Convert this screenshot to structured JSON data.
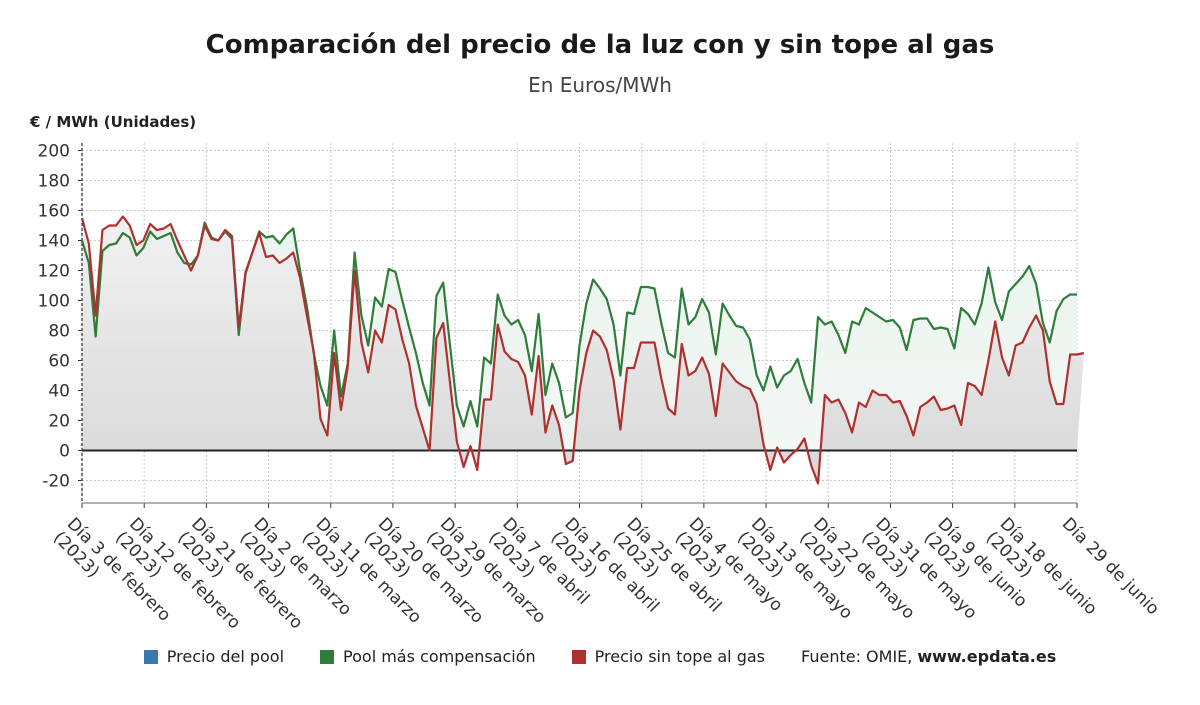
{
  "header": {
    "title": "Comparación del precio de la luz con y sin tope al gas",
    "subtitle": "En Euros/MWh",
    "unit": "€ / MWh (Unidades)"
  },
  "legend": {
    "items": [
      {
        "label": "Precio del pool",
        "color": "#3b78b0"
      },
      {
        "label": "Pool más compensación",
        "color": "#2e7d3a"
      },
      {
        "label": "Precio sin tope al gas",
        "color": "#b03030"
      }
    ],
    "source_prefix": "Fuente: OMIE,",
    "source_site": "www.epdata.es"
  },
  "chart_data": {
    "type": "line",
    "ylim": [
      -35,
      205
    ],
    "yticks": [
      -20,
      0,
      20,
      40,
      60,
      80,
      100,
      120,
      140,
      160,
      180,
      200
    ],
    "grid": true,
    "legend_position": "bottom",
    "x_ticks": [
      {
        "line1": "Día 3 de febrero",
        "line2": "(2023)"
      },
      {
        "line1": "Día 12 de febrero",
        "line2": "(2023)"
      },
      {
        "line1": "Día 21 de febrero",
        "line2": "(2023)"
      },
      {
        "line1": "Día 2 de marzo",
        "line2": "(2023)"
      },
      {
        "line1": "Día 11 de marzo",
        "line2": "(2023)"
      },
      {
        "line1": "Día 20 de marzo",
        "line2": "(2023)"
      },
      {
        "line1": "Día 29 de marzo",
        "line2": "(2023)"
      },
      {
        "line1": "Día 7 de abril",
        "line2": "(2023)"
      },
      {
        "line1": "Día 16 de abril",
        "line2": "(2023)"
      },
      {
        "line1": "Día 25 de abril",
        "line2": "(2023)"
      },
      {
        "line1": "Día 4 de mayo",
        "line2": "(2023)"
      },
      {
        "line1": "Día 13 de mayo",
        "line2": "(2023)"
      },
      {
        "line1": "Día 22 de mayo",
        "line2": "(2023)"
      },
      {
        "line1": "Día 31 de mayo",
        "line2": "(2023)"
      },
      {
        "line1": "Día 9 de junio",
        "line2": "(2023)"
      },
      {
        "line1": "Día 18 de junio",
        "line2": "(2023)"
      },
      {
        "line1": "Día 29 de junio",
        "line2": ""
      }
    ],
    "series": [
      {
        "name": "Pool más compensación",
        "color": "#2e7d3a",
        "values": [
          140,
          125,
          76,
          133,
          137,
          138,
          145,
          142,
          130,
          135,
          146,
          141,
          143,
          145,
          132,
          125,
          124,
          130,
          152,
          142,
          140,
          146,
          141,
          77,
          118,
          132,
          146,
          142,
          143,
          138,
          144,
          148,
          120,
          96,
          65,
          43,
          30,
          80,
          36,
          58,
          132,
          90,
          70,
          102,
          96,
          121,
          119,
          100,
          82,
          65,
          45,
          30,
          103,
          112,
          70,
          30,
          16,
          33,
          16,
          62,
          58,
          104,
          90,
          84,
          87,
          77,
          53,
          91,
          37,
          58,
          45,
          22,
          25,
          70,
          98,
          114,
          108,
          101,
          84,
          50,
          92,
          91,
          109,
          109,
          108,
          85,
          65,
          62,
          108,
          84,
          89,
          101,
          92,
          64,
          98,
          90,
          83,
          82,
          74,
          50,
          40,
          56,
          42,
          50,
          53,
          61,
          45,
          32,
          89,
          84,
          86,
          77,
          65,
          86,
          84,
          95,
          92,
          89,
          86,
          87,
          82,
          67,
          87,
          88,
          88,
          81,
          82,
          81,
          68,
          95,
          91,
          84,
          98,
          122,
          99,
          87,
          106,
          111,
          116,
          123,
          111,
          85,
          72,
          93,
          101,
          104,
          104
        ]
      },
      {
        "name": "Precio sin tope al gas",
        "color": "#b03030",
        "values": [
          155,
          138,
          90,
          147,
          150,
          150,
          156,
          150,
          137,
          140,
          151,
          147,
          148,
          151,
          140,
          130,
          120,
          130,
          150,
          141,
          140,
          147,
          143,
          82,
          119,
          132,
          145,
          129,
          130,
          125,
          128,
          132,
          115,
          90,
          66,
          21,
          10,
          65,
          27,
          56,
          120,
          72,
          52,
          80,
          72,
          97,
          94,
          74,
          58,
          30,
          15,
          0,
          75,
          85,
          45,
          6,
          -11,
          3,
          -13,
          34,
          34,
          84,
          66,
          61,
          59,
          50,
          24,
          63,
          12,
          30,
          17,
          -9,
          -7,
          40,
          65,
          80,
          76,
          67,
          47,
          14,
          55,
          55,
          72,
          72,
          72,
          48,
          28,
          24,
          71,
          50,
          53,
          62,
          51,
          23,
          58,
          52,
          46,
          43,
          41,
          31,
          4,
          -13,
          2,
          -8,
          -3,
          1,
          8,
          -10,
          -22,
          37,
          32,
          34,
          25,
          12,
          32,
          29,
          40,
          37,
          37,
          32,
          33,
          23,
          10,
          29,
          32,
          36,
          27,
          28,
          30,
          17,
          45,
          43,
          37,
          60,
          86,
          62,
          50,
          70,
          72,
          82,
          90,
          80,
          46,
          31,
          31,
          64,
          64,
          65
        ]
      }
    ]
  }
}
